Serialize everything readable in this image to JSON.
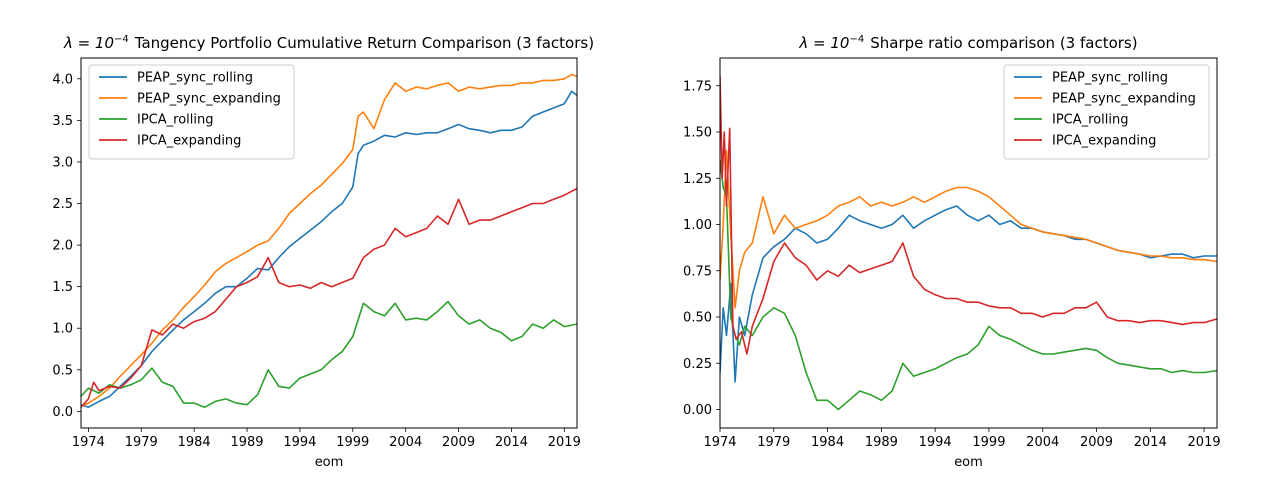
{
  "chart_data": [
    {
      "type": "line",
      "title_prefix": "λ = 10",
      "title_exponent": "−4",
      "title_suffix": "Tangency Portfolio Cumulative Return Comparison (3 factors)",
      "xlabel": "eom",
      "ylabel": "",
      "xlim": [
        1973.3,
        2020.2
      ],
      "ylim": [
        -0.2,
        4.25
      ],
      "x_ticks": [
        1974,
        1979,
        1984,
        1989,
        1994,
        1999,
        2004,
        2009,
        2014,
        2019
      ],
      "x_tick_labels": [
        "1974",
        "1979",
        "1984",
        "1989",
        "1994",
        "1999",
        "2004",
        "2009",
        "2014",
        "2019"
      ],
      "y_ticks": [
        0.0,
        0.5,
        1.0,
        1.5,
        2.0,
        2.5,
        3.0,
        3.5,
        4.0
      ],
      "y_tick_labels": [
        "0.0",
        "0.5",
        "1.0",
        "1.5",
        "2.0",
        "2.5",
        "3.0",
        "3.5",
        "4.0"
      ],
      "legend": "top-left",
      "grid": false,
      "series": [
        {
          "name": "PEAP_sync_rolling",
          "color": "#1f77b4",
          "x": [
            1973.3,
            1974,
            1975,
            1976,
            1977,
            1978,
            1979,
            1980,
            1981,
            1982,
            1983,
            1984,
            1985,
            1986,
            1987,
            1988,
            1989,
            1990,
            1991,
            1992,
            1993,
            1994,
            1995,
            1996,
            1997,
            1998,
            1999,
            1999.5,
            2000,
            2001,
            2002,
            2003,
            2004,
            2005,
            2006,
            2007,
            2008,
            2009,
            2010,
            2011,
            2012,
            2013,
            2014,
            2015,
            2016,
            2017,
            2018,
            2019,
            2019.7,
            2020.2
          ],
          "values": [
            0.08,
            0.05,
            0.12,
            0.18,
            0.3,
            0.42,
            0.55,
            0.72,
            0.85,
            0.98,
            1.1,
            1.2,
            1.3,
            1.42,
            1.5,
            1.5,
            1.6,
            1.72,
            1.7,
            1.85,
            1.98,
            2.08,
            2.18,
            2.28,
            2.4,
            2.5,
            2.7,
            3.1,
            3.2,
            3.25,
            3.32,
            3.3,
            3.35,
            3.33,
            3.35,
            3.35,
            3.4,
            3.45,
            3.4,
            3.38,
            3.35,
            3.38,
            3.38,
            3.42,
            3.55,
            3.6,
            3.65,
            3.7,
            3.85,
            3.8
          ]
        },
        {
          "name": "PEAP_sync_expanding",
          "color": "#ff7f0e",
          "x": [
            1973.3,
            1974,
            1975,
            1976,
            1977,
            1978,
            1979,
            1980,
            1981,
            1982,
            1983,
            1984,
            1985,
            1986,
            1987,
            1988,
            1989,
            1990,
            1991,
            1992,
            1993,
            1994,
            1995,
            1996,
            1997,
            1998,
            1999,
            1999.5,
            2000,
            2001,
            2002,
            2003,
            2004,
            2005,
            2006,
            2007,
            2008,
            2009,
            2010,
            2011,
            2012,
            2013,
            2014,
            2015,
            2016,
            2017,
            2018,
            2019,
            2019.7,
            2020.2
          ],
          "values": [
            0.06,
            0.1,
            0.18,
            0.28,
            0.42,
            0.55,
            0.68,
            0.82,
            0.98,
            1.1,
            1.25,
            1.38,
            1.52,
            1.68,
            1.78,
            1.85,
            1.92,
            2.0,
            2.05,
            2.2,
            2.38,
            2.5,
            2.62,
            2.72,
            2.85,
            2.98,
            3.15,
            3.55,
            3.6,
            3.4,
            3.75,
            3.95,
            3.85,
            3.9,
            3.88,
            3.92,
            3.95,
            3.85,
            3.9,
            3.88,
            3.9,
            3.92,
            3.92,
            3.95,
            3.95,
            3.98,
            3.98,
            4.0,
            4.05,
            4.03
          ]
        },
        {
          "name": "IPCA_rolling",
          "color": "#2ca02c",
          "x": [
            1973.3,
            1974,
            1975,
            1976,
            1977,
            1978,
            1979,
            1980,
            1981,
            1982,
            1983,
            1984,
            1985,
            1986,
            1987,
            1988,
            1989,
            1990,
            1991,
            1992,
            1993,
            1994,
            1995,
            1996,
            1997,
            1998,
            1999,
            2000,
            2001,
            2002,
            2003,
            2004,
            2005,
            2006,
            2007,
            2008,
            2009,
            2010,
            2011,
            2012,
            2013,
            2014,
            2015,
            2016,
            2017,
            2018,
            2019,
            2020.2
          ],
          "values": [
            0.18,
            0.28,
            0.22,
            0.32,
            0.28,
            0.32,
            0.38,
            0.52,
            0.35,
            0.3,
            0.1,
            0.1,
            0.05,
            0.12,
            0.15,
            0.1,
            0.08,
            0.2,
            0.5,
            0.3,
            0.28,
            0.4,
            0.45,
            0.5,
            0.62,
            0.72,
            0.9,
            1.3,
            1.2,
            1.15,
            1.3,
            1.1,
            1.12,
            1.1,
            1.2,
            1.32,
            1.15,
            1.05,
            1.1,
            1.0,
            0.95,
            0.85,
            0.9,
            1.05,
            1.0,
            1.1,
            1.02,
            1.05
          ]
        },
        {
          "name": "IPCA_expanding",
          "color": "#d62728",
          "x": [
            1973.3,
            1974,
            1974.5,
            1975,
            1976,
            1977,
            1978,
            1979,
            1980,
            1981,
            1982,
            1983,
            1984,
            1985,
            1986,
            1987,
            1988,
            1989,
            1990,
            1991,
            1992,
            1993,
            1994,
            1995,
            1996,
            1997,
            1998,
            1999,
            2000,
            2001,
            2002,
            2003,
            2004,
            2005,
            2006,
            2007,
            2008,
            2009,
            2010,
            2011,
            2012,
            2013,
            2014,
            2015,
            2016,
            2017,
            2018,
            2019,
            2020.2
          ],
          "values": [
            0.05,
            0.15,
            0.35,
            0.25,
            0.3,
            0.28,
            0.4,
            0.55,
            0.98,
            0.92,
            1.05,
            1.0,
            1.08,
            1.12,
            1.2,
            1.35,
            1.5,
            1.55,
            1.62,
            1.85,
            1.55,
            1.5,
            1.52,
            1.48,
            1.55,
            1.5,
            1.55,
            1.6,
            1.85,
            1.95,
            2.0,
            2.2,
            2.1,
            2.15,
            2.2,
            2.35,
            2.25,
            2.55,
            2.25,
            2.3,
            2.3,
            2.35,
            2.4,
            2.45,
            2.5,
            2.5,
            2.55,
            2.6,
            2.68
          ]
        }
      ]
    },
    {
      "type": "line",
      "title_prefix": "λ = 10",
      "title_exponent": "−4",
      "title_suffix": "Sharpe ratio comparison (3 factors)",
      "xlabel": "eom",
      "ylabel": "",
      "xlim": [
        1974.0,
        2020.2
      ],
      "ylim": [
        -0.1,
        1.9
      ],
      "x_ticks": [
        1974,
        1979,
        1984,
        1989,
        1994,
        1999,
        2004,
        2009,
        2014,
        2019
      ],
      "x_tick_labels": [
        "1974",
        "1979",
        "1984",
        "1989",
        "1994",
        "1999",
        "2004",
        "2009",
        "2014",
        "2019"
      ],
      "y_ticks": [
        0.0,
        0.25,
        0.5,
        0.75,
        1.0,
        1.25,
        1.5,
        1.75
      ],
      "y_tick_labels": [
        "0.00",
        "0.25",
        "0.50",
        "0.75",
        "1.00",
        "1.25",
        "1.50",
        "1.75"
      ],
      "legend": "top-right",
      "grid": false,
      "series": [
        {
          "name": "PEAP_sync_rolling",
          "color": "#1f77b4",
          "x": [
            1974.0,
            1974.3,
            1974.6,
            1975.0,
            1975.4,
            1975.8,
            1976.3,
            1977,
            1978,
            1979,
            1980,
            1981,
            1982,
            1983,
            1984,
            1985,
            1986,
            1987,
            1988,
            1989,
            1990,
            1991,
            1992,
            1993,
            1994,
            1995,
            1996,
            1997,
            1998,
            1999,
            2000,
            2001,
            2002,
            2003,
            2004,
            2005,
            2006,
            2007,
            2008,
            2009,
            2010,
            2011,
            2012,
            2013,
            2014,
            2015,
            2016,
            2017,
            2018,
            2019,
            2020.2
          ],
          "values": [
            0.2,
            0.55,
            0.4,
            0.68,
            0.15,
            0.5,
            0.4,
            0.62,
            0.82,
            0.88,
            0.92,
            0.98,
            0.95,
            0.9,
            0.92,
            0.98,
            1.05,
            1.02,
            1.0,
            0.98,
            1.0,
            1.05,
            0.98,
            1.02,
            1.05,
            1.08,
            1.1,
            1.05,
            1.02,
            1.05,
            1.0,
            1.02,
            0.98,
            0.98,
            0.96,
            0.95,
            0.94,
            0.92,
            0.92,
            0.9,
            0.88,
            0.86,
            0.85,
            0.84,
            0.82,
            0.83,
            0.84,
            0.84,
            0.82,
            0.83,
            0.83
          ]
        },
        {
          "name": "PEAP_sync_expanding",
          "color": "#ff7f0e",
          "x": [
            1974.0,
            1974.3,
            1974.6,
            1975.0,
            1975.4,
            1975.8,
            1976.3,
            1977,
            1978,
            1979,
            1980,
            1981,
            1982,
            1983,
            1984,
            1985,
            1986,
            1987,
            1988,
            1989,
            1990,
            1991,
            1992,
            1993,
            1994,
            1995,
            1996,
            1997,
            1998,
            1999,
            2000,
            2001,
            2002,
            2003,
            2004,
            2005,
            2006,
            2007,
            2008,
            2009,
            2010,
            2011,
            2012,
            2013,
            2014,
            2015,
            2016,
            2017,
            2018,
            2019,
            2020.2
          ],
          "values": [
            0.7,
            1.0,
            1.4,
            0.95,
            0.55,
            0.75,
            0.85,
            0.9,
            1.15,
            0.95,
            1.05,
            0.98,
            1.0,
            1.02,
            1.05,
            1.1,
            1.12,
            1.15,
            1.1,
            1.12,
            1.1,
            1.12,
            1.15,
            1.12,
            1.15,
            1.18,
            1.2,
            1.2,
            1.18,
            1.15,
            1.1,
            1.05,
            1.0,
            0.98,
            0.96,
            0.95,
            0.94,
            0.93,
            0.92,
            0.9,
            0.88,
            0.86,
            0.85,
            0.84,
            0.83,
            0.83,
            0.82,
            0.82,
            0.81,
            0.81,
            0.8
          ]
        },
        {
          "name": "IPCA_rolling",
          "color": "#2ca02c",
          "x": [
            1974.0,
            1974.3,
            1974.6,
            1975.0,
            1975.4,
            1975.8,
            1976.3,
            1977,
            1978,
            1979,
            1980,
            1981,
            1982,
            1983,
            1984,
            1985,
            1986,
            1987,
            1988,
            1989,
            1990,
            1991,
            1992,
            1993,
            1994,
            1995,
            1996,
            1997,
            1998,
            1999,
            2000,
            2001,
            2002,
            2003,
            2004,
            2005,
            2006,
            2007,
            2008,
            2009,
            2010,
            2011,
            2012,
            2013,
            2014,
            2015,
            2016,
            2017,
            2018,
            2019,
            2020.2
          ],
          "values": [
            1.35,
            1.2,
            1.15,
            0.5,
            0.4,
            0.35,
            0.45,
            0.4,
            0.5,
            0.55,
            0.52,
            0.4,
            0.2,
            0.05,
            0.05,
            0.0,
            0.05,
            0.1,
            0.08,
            0.05,
            0.1,
            0.25,
            0.18,
            0.2,
            0.22,
            0.25,
            0.28,
            0.3,
            0.35,
            0.45,
            0.4,
            0.38,
            0.35,
            0.32,
            0.3,
            0.3,
            0.31,
            0.32,
            0.33,
            0.32,
            0.28,
            0.25,
            0.24,
            0.23,
            0.22,
            0.22,
            0.2,
            0.21,
            0.2,
            0.2,
            0.21
          ]
        },
        {
          "name": "IPCA_expanding",
          "color": "#d62728",
          "x": [
            1974.0,
            1974.2,
            1974.4,
            1974.6,
            1974.9,
            1975.2,
            1975.5,
            1976.0,
            1976.5,
            1977,
            1978,
            1979,
            1980,
            1981,
            1982,
            1983,
            1984,
            1985,
            1986,
            1987,
            1988,
            1989,
            1990,
            1991,
            1992,
            1993,
            1994,
            1995,
            1996,
            1997,
            1998,
            1999,
            2000,
            2001,
            2002,
            2003,
            2004,
            2005,
            2006,
            2007,
            2008,
            2009,
            2010,
            2011,
            2012,
            2013,
            2014,
            2015,
            2016,
            2017,
            2018,
            2019,
            2020.2
          ],
          "values": [
            1.8,
            1.25,
            1.5,
            1.1,
            1.52,
            0.45,
            0.38,
            0.42,
            0.3,
            0.45,
            0.6,
            0.8,
            0.9,
            0.82,
            0.78,
            0.7,
            0.75,
            0.72,
            0.78,
            0.74,
            0.76,
            0.78,
            0.8,
            0.9,
            0.72,
            0.65,
            0.62,
            0.6,
            0.6,
            0.58,
            0.58,
            0.56,
            0.55,
            0.55,
            0.52,
            0.52,
            0.5,
            0.52,
            0.52,
            0.55,
            0.55,
            0.58,
            0.5,
            0.48,
            0.48,
            0.47,
            0.48,
            0.48,
            0.47,
            0.46,
            0.47,
            0.47,
            0.49
          ]
        }
      ]
    }
  ]
}
